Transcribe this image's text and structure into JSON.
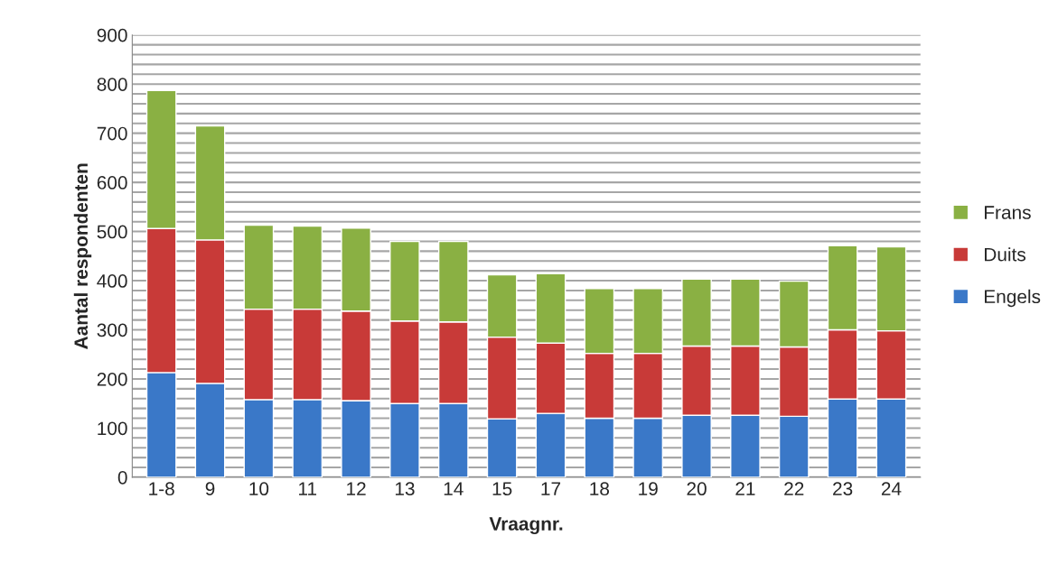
{
  "chart_data": {
    "type": "bar",
    "stacked": true,
    "xlabel": "Vraagnr.",
    "ylabel": "Aantal respondenten",
    "categories": [
      "1-8",
      "9",
      "10",
      "11",
      "12",
      "13",
      "14",
      "15",
      "17",
      "18",
      "19",
      "20",
      "21",
      "22",
      "23",
      "24"
    ],
    "series": [
      {
        "name": "Engels",
        "color": "#3a78c8",
        "values": [
          213,
          191,
          158,
          158,
          156,
          150,
          150,
          119,
          130,
          120,
          120,
          126,
          126,
          124,
          159,
          159
        ]
      },
      {
        "name": "Duits",
        "color": "#c83a38",
        "values": [
          293,
          292,
          184,
          184,
          182,
          168,
          166,
          166,
          143,
          132,
          132,
          141,
          141,
          141,
          141,
          139
        ]
      },
      {
        "name": "Frans",
        "color": "#8ab043",
        "values": [
          281,
          232,
          171,
          169,
          169,
          162,
          164,
          127,
          141,
          132,
          132,
          136,
          136,
          134,
          171,
          171
        ]
      }
    ],
    "ylim": [
      0,
      900
    ],
    "yticks": [
      0,
      {
        "value": 20,
        "label": null
      },
      {
        "value": 40,
        "label": null
      },
      {
        "value": 60,
        "label": null
      },
      {
        "value": 80,
        "label": null
      },
      100,
      {
        "value": 120,
        "label": null
      },
      {
        "value": 140,
        "label": null
      },
      {
        "value": 160,
        "label": null
      },
      {
        "value": 180,
        "label": null
      },
      200,
      {
        "value": 220,
        "label": null
      },
      {
        "value": 240,
        "label": null
      },
      {
        "value": 260,
        "label": null
      },
      {
        "value": 280,
        "label": null
      },
      300,
      {
        "value": 320,
        "label": null
      },
      {
        "value": 340,
        "label": null
      },
      {
        "value": 360,
        "label": null
      },
      {
        "value": 380,
        "label": null
      },
      400,
      {
        "value": 420,
        "label": null
      },
      {
        "value": 440,
        "label": null
      },
      {
        "value": 460,
        "label": null
      },
      {
        "value": 480,
        "label": null
      },
      500,
      {
        "value": 520,
        "label": null
      },
      {
        "value": 540,
        "label": null
      },
      {
        "value": 560,
        "label": null
      },
      {
        "value": 580,
        "label": null
      },
      600,
      {
        "value": 620,
        "label": null
      },
      {
        "value": 640,
        "label": null
      },
      {
        "value": 660,
        "label": null
      },
      {
        "value": 680,
        "label": null
      },
      700,
      {
        "value": 720,
        "label": null
      },
      {
        "value": 740,
        "label": null
      },
      {
        "value": 760,
        "label": null
      },
      {
        "value": 780,
        "label": null
      },
      800,
      {
        "value": 820,
        "label": null
      },
      {
        "value": 840,
        "label": null
      },
      {
        "value": 860,
        "label": null
      },
      {
        "value": 880,
        "label": null
      },
      900
    ],
    "grid": "y",
    "legend": "right"
  }
}
